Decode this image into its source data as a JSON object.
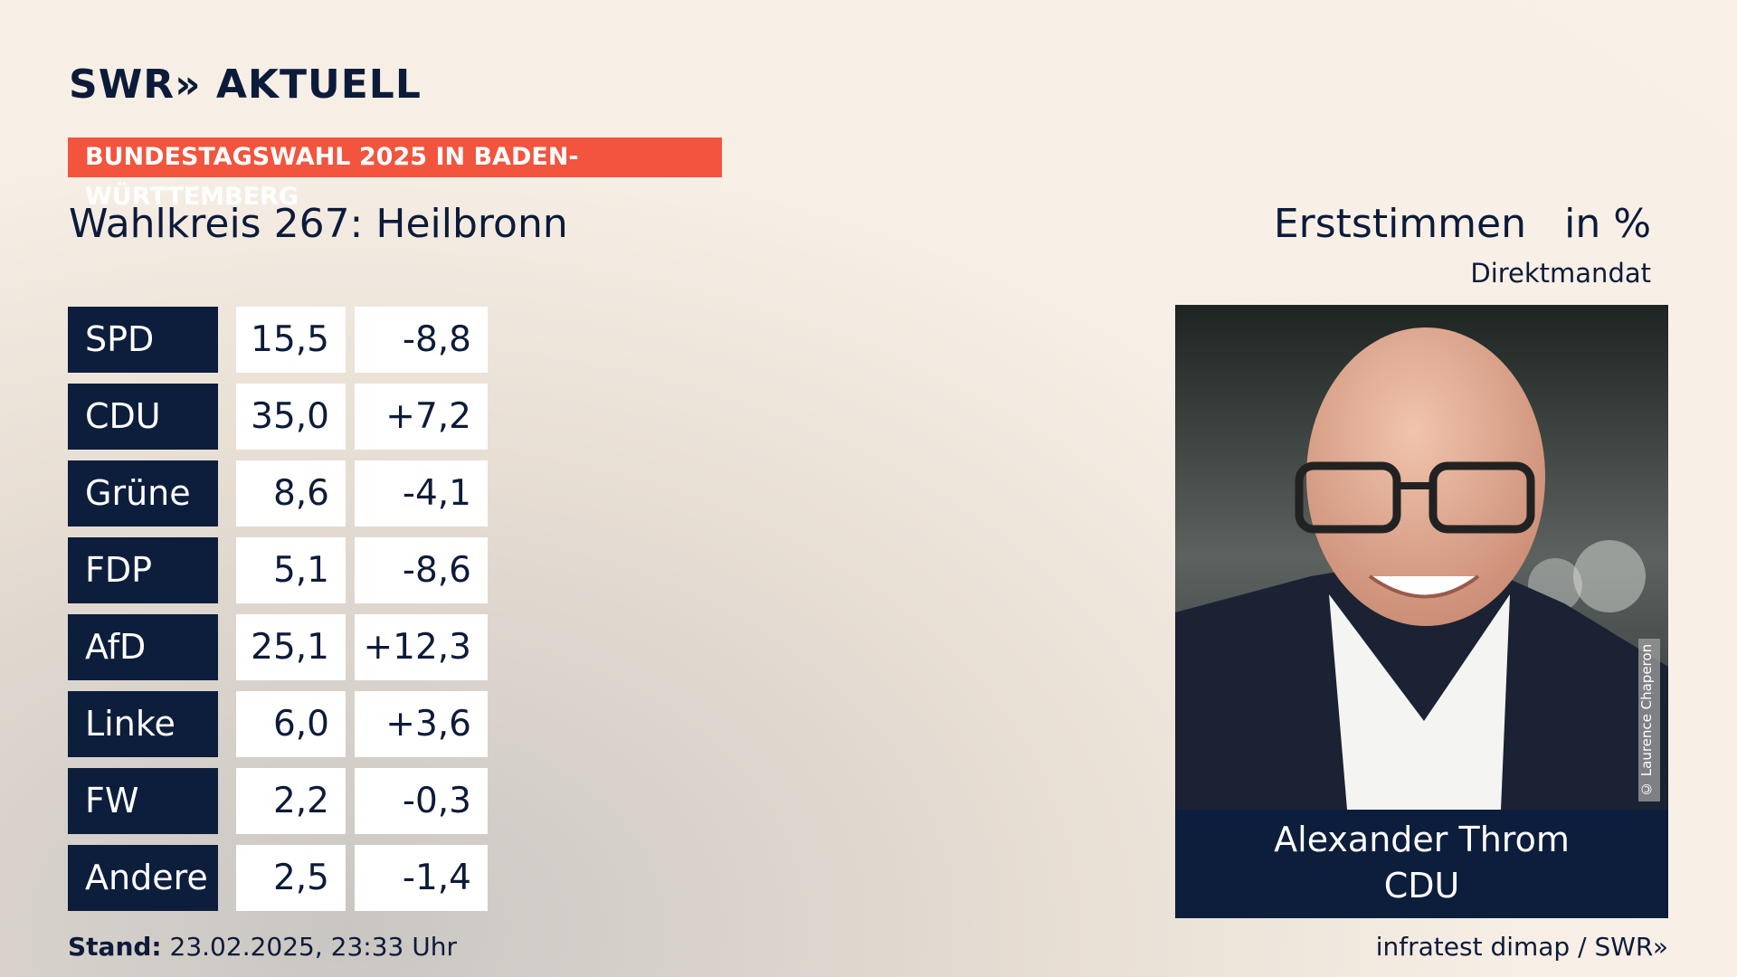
{
  "header": {
    "logo": "SWR» AKTUELL",
    "banner": "BUNDESTAGSWAHL 2025 IN BADEN-WÜRTTEMBERG",
    "title": "Wahlkreis 267: Heilbronn",
    "measure": "Erststimmen",
    "unit": "in %",
    "subtitle": "Direktmandat"
  },
  "table": {
    "rows": [
      [
        "SPD",
        "15,5",
        "-8,8"
      ],
      [
        "CDU",
        "35,0",
        "+7,2"
      ],
      [
        "Grüne",
        "8,6",
        "-4,1"
      ],
      [
        "FDP",
        "5,1",
        "-8,6"
      ],
      [
        "AfD",
        "25,1",
        "+12,3"
      ],
      [
        "Linke",
        "6,0",
        "+3,6"
      ],
      [
        "FW",
        "2,2",
        "-0,3"
      ],
      [
        "Andere",
        "2,5",
        "-1,4"
      ]
    ]
  },
  "candidate": {
    "name": "Alexander Throm",
    "party": "CDU",
    "credit": "© Laurence Chaperon"
  },
  "footer": {
    "stand_label": "Stand:",
    "stand": "23.02.2025, 23:33 Uhr",
    "source": "infratest dimap / SWR»"
  }
}
